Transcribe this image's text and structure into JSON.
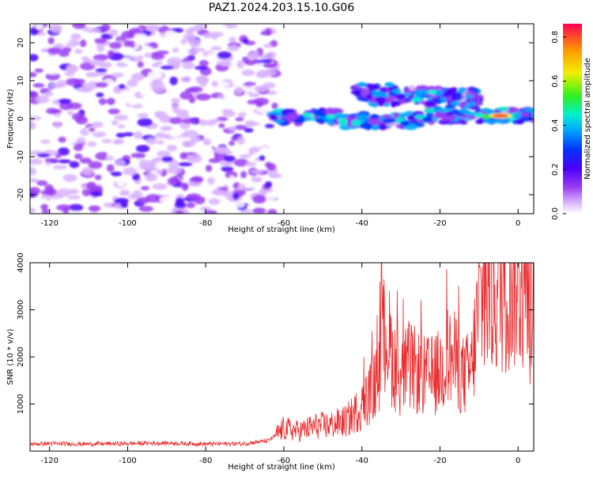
{
  "title": "PAZ1.2024.203.15.10.G06",
  "colors": {
    "snr_line": "#e8282a",
    "spectrogram_cmap": [
      "#ffffff",
      "#d9b3ff",
      "#9a3cf2",
      "#4a00ff",
      "#0036ff",
      "#00a8ff",
      "#00f0d0",
      "#30f020",
      "#f0f000",
      "#ff9a00",
      "#ff0050"
    ]
  },
  "chart_data": [
    {
      "type": "heatmap",
      "xlabel": "Height of straight line (km)",
      "ylabel": "Frequency (Hz)",
      "xlim": [
        -125,
        4
      ],
      "ylim": [
        -25,
        25
      ],
      "xticks": [
        -120,
        -100,
        -80,
        -60,
        -40,
        -20,
        0
      ],
      "yticks": [
        -20,
        -10,
        0,
        10,
        20
      ],
      "colorbar": {
        "label": "Normalized spectral amplitude",
        "range": [
          0,
          0.86
        ],
        "ticks": [
          "0.0",
          "0.2",
          "0.4",
          "0.6",
          "0.8"
        ]
      },
      "description_regions": [
        {
          "x_range": [
            -125,
            -62
          ],
          "y_range": [
            -25,
            25
          ],
          "level": 0.15,
          "kind": "noise"
        },
        {
          "x_range": [
            -62,
            4
          ],
          "center_freq": 0,
          "level": 0.45,
          "kind": "signal"
        },
        {
          "x_range": [
            -40,
            -12
          ],
          "center_freq": 7,
          "level": 0.4,
          "kind": "signal"
        },
        {
          "x_range": [
            -10,
            0
          ],
          "center_freq": 1,
          "level": 0.86,
          "kind": "peak"
        }
      ]
    },
    {
      "type": "line",
      "xlabel": "Height of straight line (km)",
      "ylabel": "SNR (10 * v/v)",
      "xlim": [
        -125,
        4
      ],
      "ylim": [
        0,
        4000
      ],
      "xticks": [
        -120,
        -100,
        -80,
        -60,
        -40,
        -20,
        0
      ],
      "yticks": [
        1000,
        2000,
        3000,
        4000
      ],
      "series": [
        {
          "x": [
            -125,
            -120,
            -110,
            -100,
            -90,
            -80,
            -70,
            -64,
            -60,
            -56,
            -52,
            -48,
            -44,
            -40,
            -36,
            -34,
            -32,
            -30,
            -28,
            -26,
            -24,
            -22,
            -20,
            -18,
            -16,
            -14,
            -12,
            -10,
            -8,
            -6,
            -4,
            -2,
            0,
            2,
            4
          ],
          "y": [
            150,
            160,
            150,
            160,
            170,
            150,
            160,
            220,
            450,
            400,
            500,
            520,
            600,
            900,
            1400,
            2500,
            1800,
            1500,
            1700,
            1600,
            1500,
            1500,
            1600,
            1900,
            1800,
            1500,
            1600,
            2900,
            3100,
            3200,
            3300,
            3400,
            3600,
            3100,
            2800
          ]
        }
      ]
    }
  ]
}
